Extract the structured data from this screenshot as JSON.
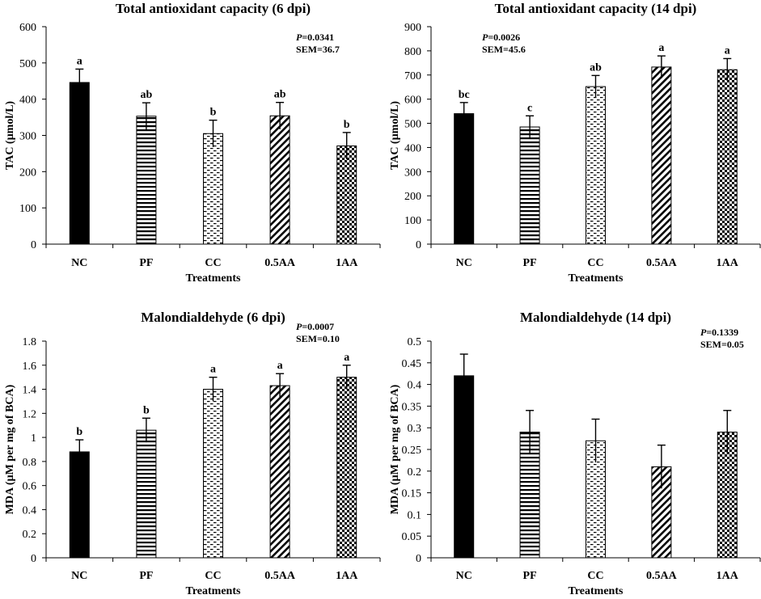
{
  "chart_data": [
    {
      "type": "bar",
      "title": "Total antioxidant capacity (6 dpi)",
      "xlabel": "Treatments",
      "ylabel": "TAC (µmol/L)",
      "ylim": [
        0,
        600
      ],
      "yticks": [
        "0",
        "100",
        "200",
        "300",
        "400",
        "500",
        "600"
      ],
      "categories": [
        "NC",
        "PF",
        "CC",
        "0.5AA",
        "1AA"
      ],
      "values": [
        446,
        353,
        305,
        354,
        271
      ],
      "errors": [
        37,
        37,
        37,
        37,
        37
      ],
      "letters": [
        "a",
        "ab",
        "b",
        "ab",
        "b"
      ],
      "stats": {
        "p_prefix": "P",
        "p_value": "=0.0341",
        "sem": "SEM=36.7"
      },
      "grid": false
    },
    {
      "type": "bar",
      "title": "Total antioxidant capacity (14 dpi)",
      "xlabel": "Treatments",
      "ylabel": "TAC (µmol/L)",
      "ylim": [
        0,
        900
      ],
      "yticks": [
        "0",
        "100",
        "200",
        "300",
        "400",
        "500",
        "600",
        "700",
        "800",
        "900"
      ],
      "categories": [
        "NC",
        "PF",
        "CC",
        "0.5AA",
        "1AA"
      ],
      "values": [
        540,
        485,
        652,
        733,
        722
      ],
      "errors": [
        46,
        46,
        46,
        46,
        46
      ],
      "letters": [
        "bc",
        "c",
        "ab",
        "a",
        "a"
      ],
      "stats": {
        "p_prefix": "P",
        "p_value": "=0.0026",
        "sem": "SEM=45.6"
      },
      "grid": false
    },
    {
      "type": "bar",
      "title": "Malondialdehyde (6 dpi)",
      "xlabel": "Treatments",
      "ylabel": "MDA (µM per mg of BCA)",
      "ylim": [
        0,
        1.8
      ],
      "yticks": [
        "0",
        "0.2",
        "0.4",
        "0.6",
        "0.8",
        "1",
        "1.2",
        "1.4",
        "1.6",
        "1.8"
      ],
      "categories": [
        "NC",
        "PF",
        "CC",
        "0.5AA",
        "1AA"
      ],
      "values": [
        0.88,
        1.06,
        1.4,
        1.43,
        1.5
      ],
      "errors": [
        0.1,
        0.1,
        0.1,
        0.1,
        0.1
      ],
      "letters": [
        "b",
        "b",
        "a",
        "a",
        "a"
      ],
      "stats": {
        "p_prefix": "P",
        "p_value": "=0.0007",
        "sem": "SEM=0.10"
      },
      "grid": false
    },
    {
      "type": "bar",
      "title": "Malondialdehyde (14 dpi)",
      "xlabel": "Treatments",
      "ylabel": "MDA (µM per mg of BCA)",
      "ylim": [
        0,
        0.5
      ],
      "yticks": [
        "0",
        "0.05",
        "0.1",
        "0.15",
        "0.2",
        "0.25",
        "0.3",
        "0.35",
        "0.4",
        "0.45",
        "0.5"
      ],
      "categories": [
        "NC",
        "PF",
        "CC",
        "0.5AA",
        "1AA"
      ],
      "values": [
        0.42,
        0.29,
        0.27,
        0.21,
        0.29
      ],
      "errors": [
        0.05,
        0.05,
        0.05,
        0.05,
        0.05
      ],
      "letters": [
        "",
        "",
        "",
        "",
        ""
      ],
      "stats": {
        "p_prefix": "P",
        "p_value": "=0.1339",
        "sem": "SEM=0.05"
      },
      "grid": false
    }
  ],
  "patterns": [
    "solid",
    "horizontal-lines",
    "dashes",
    "diagonal-lines",
    "checkerboard"
  ]
}
